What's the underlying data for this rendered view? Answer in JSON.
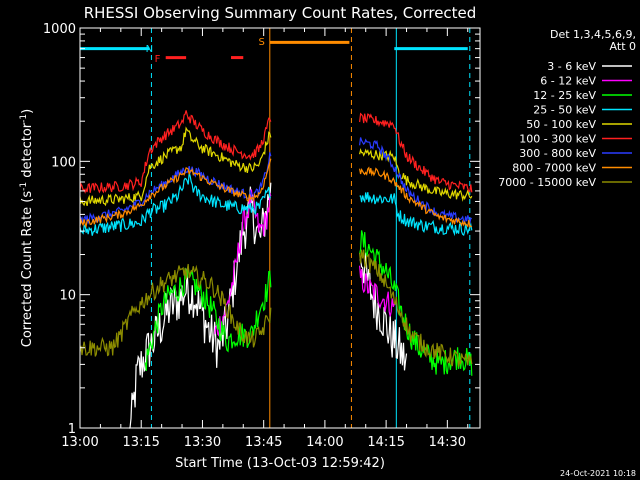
{
  "chart_data": {
    "type": "line",
    "title": "RHESSI Observing Summary Count Rates, Corrected",
    "xlabel": "Start Time (13-Oct-03 12:59:42)",
    "ylabel_main": "Corrected Count Rate (s",
    "ylabel_sup1": "-1",
    "ylabel_mid": " detector",
    "ylabel_sup2": "-1",
    "ylabel_end": ")",
    "y_scale": "log",
    "ylim": [
      1,
      1000
    ],
    "xlim_minutes": [
      0,
      98
    ],
    "x_ticks": [
      {
        "label": "13:00",
        "minute": 0
      },
      {
        "label": "13:15",
        "minute": 15
      },
      {
        "label": "13:30",
        "minute": 30
      },
      {
        "label": "13:45",
        "minute": 45
      },
      {
        "label": "14:00",
        "minute": 60
      },
      {
        "label": "14:15",
        "minute": 75
      },
      {
        "label": "14:30",
        "minute": 90
      }
    ],
    "y_ticks": [
      {
        "label": "1",
        "value": 1
      },
      {
        "label": "10",
        "value": 10
      },
      {
        "label": "100",
        "value": 100
      },
      {
        "label": "1000",
        "value": 1000
      }
    ],
    "legend_header": [
      "Det 1,3,4,5,6,9,",
      "Att 0"
    ],
    "legend_position": "top-right",
    "timestamp": "24-Oct-2021 10:18",
    "annotations": [
      {
        "label": "N",
        "minute": 17,
        "color": "#00e5ff"
      },
      {
        "label": "F",
        "minute": 19,
        "color": "#ff2020"
      },
      {
        "label": "S",
        "minute": 44.5,
        "color": "#ff8c00"
      }
    ],
    "bars": [
      {
        "name": "night-cyan",
        "color": "#00e5ff",
        "y": 700,
        "segments": [
          [
            0,
            17
          ],
          [
            77,
            95
          ]
        ]
      },
      {
        "name": "flare-red",
        "color": "#ff2020",
        "y": 600,
        "segments": [
          [
            21,
            26
          ],
          [
            37,
            40
          ]
        ]
      },
      {
        "name": "saa-orange",
        "color": "#ff8c00",
        "y": 780,
        "segments": [
          [
            46.5,
            66
          ]
        ]
      }
    ],
    "vlines": [
      {
        "minute": 0,
        "color": "#00e5ff",
        "dash": false
      },
      {
        "minute": 17.5,
        "color": "#00e5ff",
        "dash": true
      },
      {
        "minute": 46.5,
        "color": "#ff8c00",
        "dash": false
      },
      {
        "minute": 66.5,
        "color": "#ff8c00",
        "dash": true
      },
      {
        "minute": 77.5,
        "color": "#00e5ff",
        "dash": false
      },
      {
        "minute": 95.5,
        "color": "#00e5ff",
        "dash": true
      }
    ],
    "gap_minutes": [
      46.8,
      68.5
    ],
    "series": [
      {
        "name": "3 - 6 keV",
        "color": "#ffffff",
        "noise": 0.18,
        "points": [
          [
            12,
            0.8
          ],
          [
            13,
            1.4
          ],
          [
            14,
            2.5
          ],
          [
            16,
            3.5
          ],
          [
            18,
            4.5
          ],
          [
            20,
            6
          ],
          [
            22,
            8
          ],
          [
            24,
            9
          ],
          [
            26,
            11
          ],
          [
            28,
            10
          ],
          [
            30,
            7
          ],
          [
            32,
            5
          ],
          [
            34,
            4
          ],
          [
            36,
            6
          ],
          [
            38,
            14
          ],
          [
            40,
            30
          ],
          [
            42,
            45
          ],
          [
            44,
            25
          ],
          [
            45.5,
            40
          ],
          [
            46.5,
            60
          ],
          [
            69,
            20
          ],
          [
            70,
            14
          ],
          [
            72,
            9
          ],
          [
            74,
            7
          ],
          [
            76,
            5
          ],
          [
            78,
            4
          ],
          [
            80,
            3
          ]
        ]
      },
      {
        "name": "6 - 12 keV",
        "color": "#ff00ff",
        "noise": 0.1,
        "points": [
          [
            33,
            5
          ],
          [
            36,
            8
          ],
          [
            38,
            15
          ],
          [
            40,
            35
          ],
          [
            42,
            50
          ],
          [
            44,
            30
          ],
          [
            45.5,
            35
          ],
          [
            46.5,
            50
          ],
          [
            69,
            13
          ],
          [
            71,
            11
          ],
          [
            73,
            10
          ],
          [
            75,
            9
          ],
          [
            77,
            8
          ]
        ]
      },
      {
        "name": "12 - 25 keV",
        "color": "#00ff00",
        "noise": 0.1,
        "points": [
          [
            16,
            3
          ],
          [
            18,
            5
          ],
          [
            20,
            8
          ],
          [
            22,
            10
          ],
          [
            24,
            11
          ],
          [
            26,
            13
          ],
          [
            28,
            12
          ],
          [
            30,
            10
          ],
          [
            32,
            8
          ],
          [
            34,
            6
          ],
          [
            36,
            4.5
          ],
          [
            38,
            5
          ],
          [
            40,
            5
          ],
          [
            42,
            5
          ],
          [
            44,
            8
          ],
          [
            45.5,
            10
          ],
          [
            46.5,
            13
          ],
          [
            69,
            25
          ],
          [
            71,
            22
          ],
          [
            73,
            18
          ],
          [
            75,
            15
          ],
          [
            77,
            11
          ],
          [
            79,
            7
          ],
          [
            81,
            5
          ],
          [
            83,
            4
          ],
          [
            85,
            3.5
          ],
          [
            88,
            3
          ],
          [
            93,
            3.5
          ],
          [
            96,
            3
          ]
        ]
      },
      {
        "name": "25 - 50 keV",
        "color": "#00e5ff",
        "noise": 0.05,
        "points": [
          [
            0,
            30
          ],
          [
            10,
            33
          ],
          [
            15,
            35
          ],
          [
            17,
            42
          ],
          [
            20,
            45
          ],
          [
            24,
            55
          ],
          [
            26,
            70
          ],
          [
            27,
            75
          ],
          [
            28,
            60
          ],
          [
            30,
            55
          ],
          [
            34,
            48
          ],
          [
            38,
            45
          ],
          [
            42,
            44
          ],
          [
            44,
            45
          ],
          [
            45.5,
            55
          ],
          [
            46.5,
            60
          ],
          [
            69,
            55
          ],
          [
            73,
            53
          ],
          [
            77,
            52
          ],
          [
            78,
            40
          ],
          [
            80,
            36
          ],
          [
            84,
            33
          ],
          [
            88,
            32
          ],
          [
            96,
            31
          ]
        ]
      },
      {
        "name": "50 - 100 keV",
        "color": "#e0d800",
        "noise": 0.04,
        "points": [
          [
            0,
            50
          ],
          [
            10,
            52
          ],
          [
            15,
            55
          ],
          [
            17,
            90
          ],
          [
            20,
            105
          ],
          [
            23,
            120
          ],
          [
            25,
            130
          ],
          [
            26,
            175
          ],
          [
            27,
            150
          ],
          [
            30,
            125
          ],
          [
            34,
            110
          ],
          [
            38,
            95
          ],
          [
            42,
            88
          ],
          [
            44,
            95
          ],
          [
            45.5,
            130
          ],
          [
            46.5,
            160
          ],
          [
            69,
            115
          ],
          [
            73,
            112
          ],
          [
            77,
            108
          ],
          [
            78,
            85
          ],
          [
            80,
            72
          ],
          [
            84,
            64
          ],
          [
            88,
            58
          ],
          [
            96,
            55
          ]
        ]
      },
      {
        "name": "100 - 300 keV",
        "color": "#ff2020",
        "noise": 0.04,
        "points": [
          [
            0,
            62
          ],
          [
            10,
            65
          ],
          [
            15,
            70
          ],
          [
            17,
            120
          ],
          [
            20,
            150
          ],
          [
            23,
            175
          ],
          [
            25,
            195
          ],
          [
            26,
            230
          ],
          [
            27,
            210
          ],
          [
            30,
            170
          ],
          [
            34,
            140
          ],
          [
            38,
            120
          ],
          [
            42,
            110
          ],
          [
            44,
            125
          ],
          [
            45.5,
            165
          ],
          [
            46.5,
            210
          ],
          [
            69,
            210
          ],
          [
            73,
            200
          ],
          [
            77,
            190
          ],
          [
            78,
            150
          ],
          [
            80,
            110
          ],
          [
            84,
            85
          ],
          [
            88,
            70
          ],
          [
            96,
            62
          ]
        ]
      },
      {
        "name": "300 - 800 keV",
        "color": "#2a3cff",
        "noise": 0.035,
        "points": [
          [
            0,
            36
          ],
          [
            10,
            42
          ],
          [
            15,
            50
          ],
          [
            17,
            58
          ],
          [
            20,
            66
          ],
          [
            24,
            80
          ],
          [
            26,
            88
          ],
          [
            28,
            85
          ],
          [
            30,
            78
          ],
          [
            34,
            68
          ],
          [
            38,
            60
          ],
          [
            42,
            55
          ],
          [
            44,
            60
          ],
          [
            45.5,
            80
          ],
          [
            46.5,
            110
          ],
          [
            69,
            140
          ],
          [
            73,
            130
          ],
          [
            76,
            100
          ],
          [
            78,
            80
          ],
          [
            80,
            60
          ],
          [
            84,
            48
          ],
          [
            88,
            40
          ],
          [
            96,
            36
          ]
        ]
      },
      {
        "name": "800 - 7000 keV",
        "color": "#ff8c00",
        "noise": 0.03,
        "points": [
          [
            0,
            34
          ],
          [
            10,
            40
          ],
          [
            15,
            47
          ],
          [
            17,
            55
          ],
          [
            20,
            63
          ],
          [
            24,
            76
          ],
          [
            26,
            84
          ],
          [
            28,
            82
          ],
          [
            30,
            75
          ],
          [
            34,
            65
          ],
          [
            38,
            58
          ],
          [
            42,
            53
          ],
          [
            44,
            57
          ],
          [
            45.5,
            75
          ],
          [
            46.5,
            100
          ],
          [
            69,
            85
          ],
          [
            73,
            82
          ],
          [
            76,
            75
          ],
          [
            78,
            65
          ],
          [
            80,
            55
          ],
          [
            84,
            45
          ],
          [
            88,
            38
          ],
          [
            96,
            34
          ]
        ]
      },
      {
        "name": "7000 - 15000 keV",
        "color": "#8b8b00",
        "noise": 0.07,
        "points": [
          [
            0,
            4
          ],
          [
            8,
            4
          ],
          [
            10,
            5
          ],
          [
            12,
            6.5
          ],
          [
            14,
            8
          ],
          [
            17,
            10
          ],
          [
            20,
            12
          ],
          [
            23,
            13.5
          ],
          [
            26,
            15
          ],
          [
            28,
            14
          ],
          [
            30,
            13
          ],
          [
            32,
            12
          ],
          [
            34,
            10
          ],
          [
            36,
            8
          ],
          [
            38,
            6
          ],
          [
            40,
            5
          ],
          [
            42,
            4.5
          ],
          [
            44,
            5
          ],
          [
            45.5,
            6
          ],
          [
            46.5,
            7
          ],
          [
            69,
            20
          ],
          [
            71,
            17
          ],
          [
            73,
            15
          ],
          [
            75,
            12
          ],
          [
            77,
            9
          ],
          [
            79,
            7
          ],
          [
            81,
            5
          ],
          [
            85,
            4
          ],
          [
            90,
            3.5
          ],
          [
            96,
            3
          ]
        ]
      }
    ]
  }
}
